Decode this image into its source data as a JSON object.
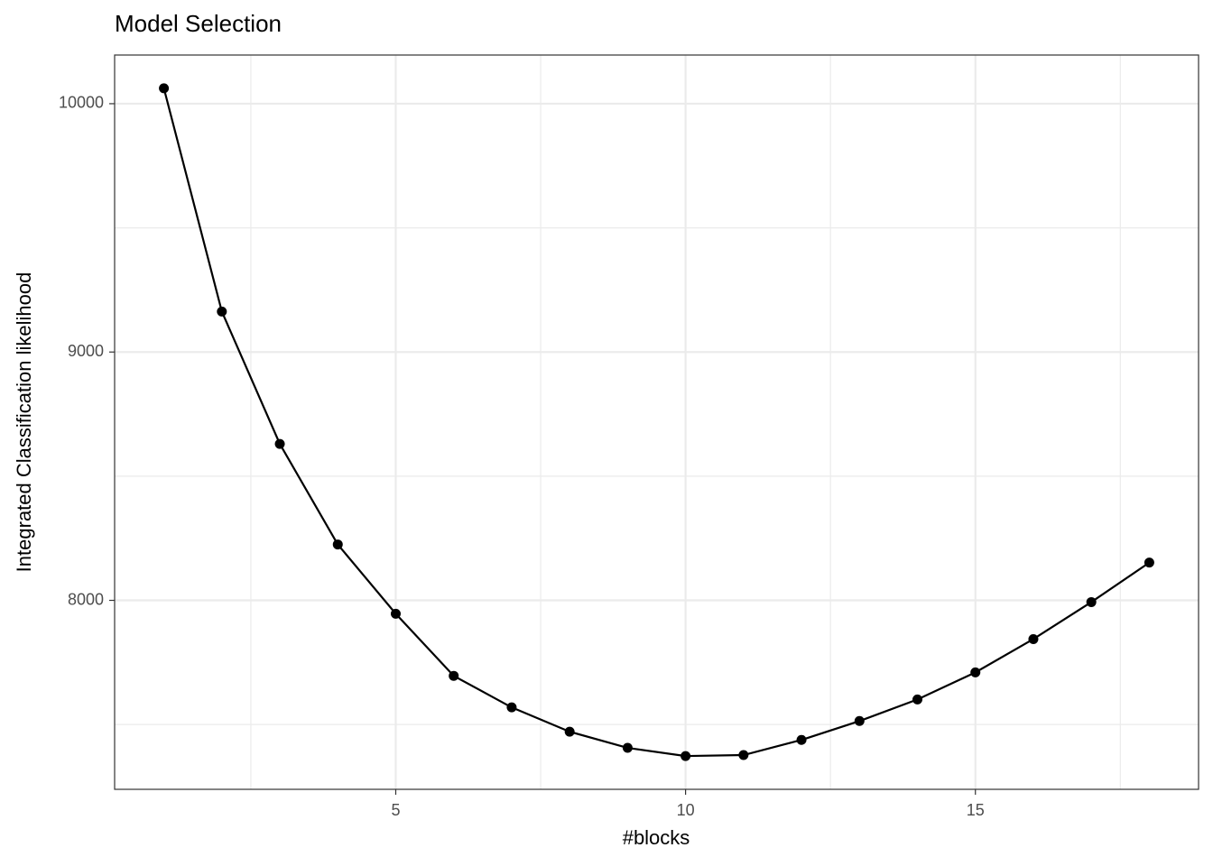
{
  "chart_data": {
    "type": "line",
    "title": "Model Selection",
    "x_label": "#blocks",
    "y_label": "Integrated Classification likelihood",
    "x": [
      1,
      2,
      3,
      4,
      5,
      6,
      7,
      8,
      9,
      10,
      11,
      12,
      13,
      14,
      15,
      16,
      17,
      18
    ],
    "values": [
      10062,
      9163,
      8630,
      8225,
      7946,
      7696,
      7569,
      7471,
      7406,
      7373,
      7377,
      7438,
      7514,
      7601,
      7710,
      7844,
      7993,
      8152
    ],
    "color": "#000000",
    "xlim": [
      0.15,
      18.85
    ],
    "xticks": [
      5,
      10,
      15
    ],
    "ylim": [
      7239,
      10196
    ],
    "yticks": [
      8000,
      9000,
      10000
    ],
    "grid": true,
    "markers": true
  }
}
